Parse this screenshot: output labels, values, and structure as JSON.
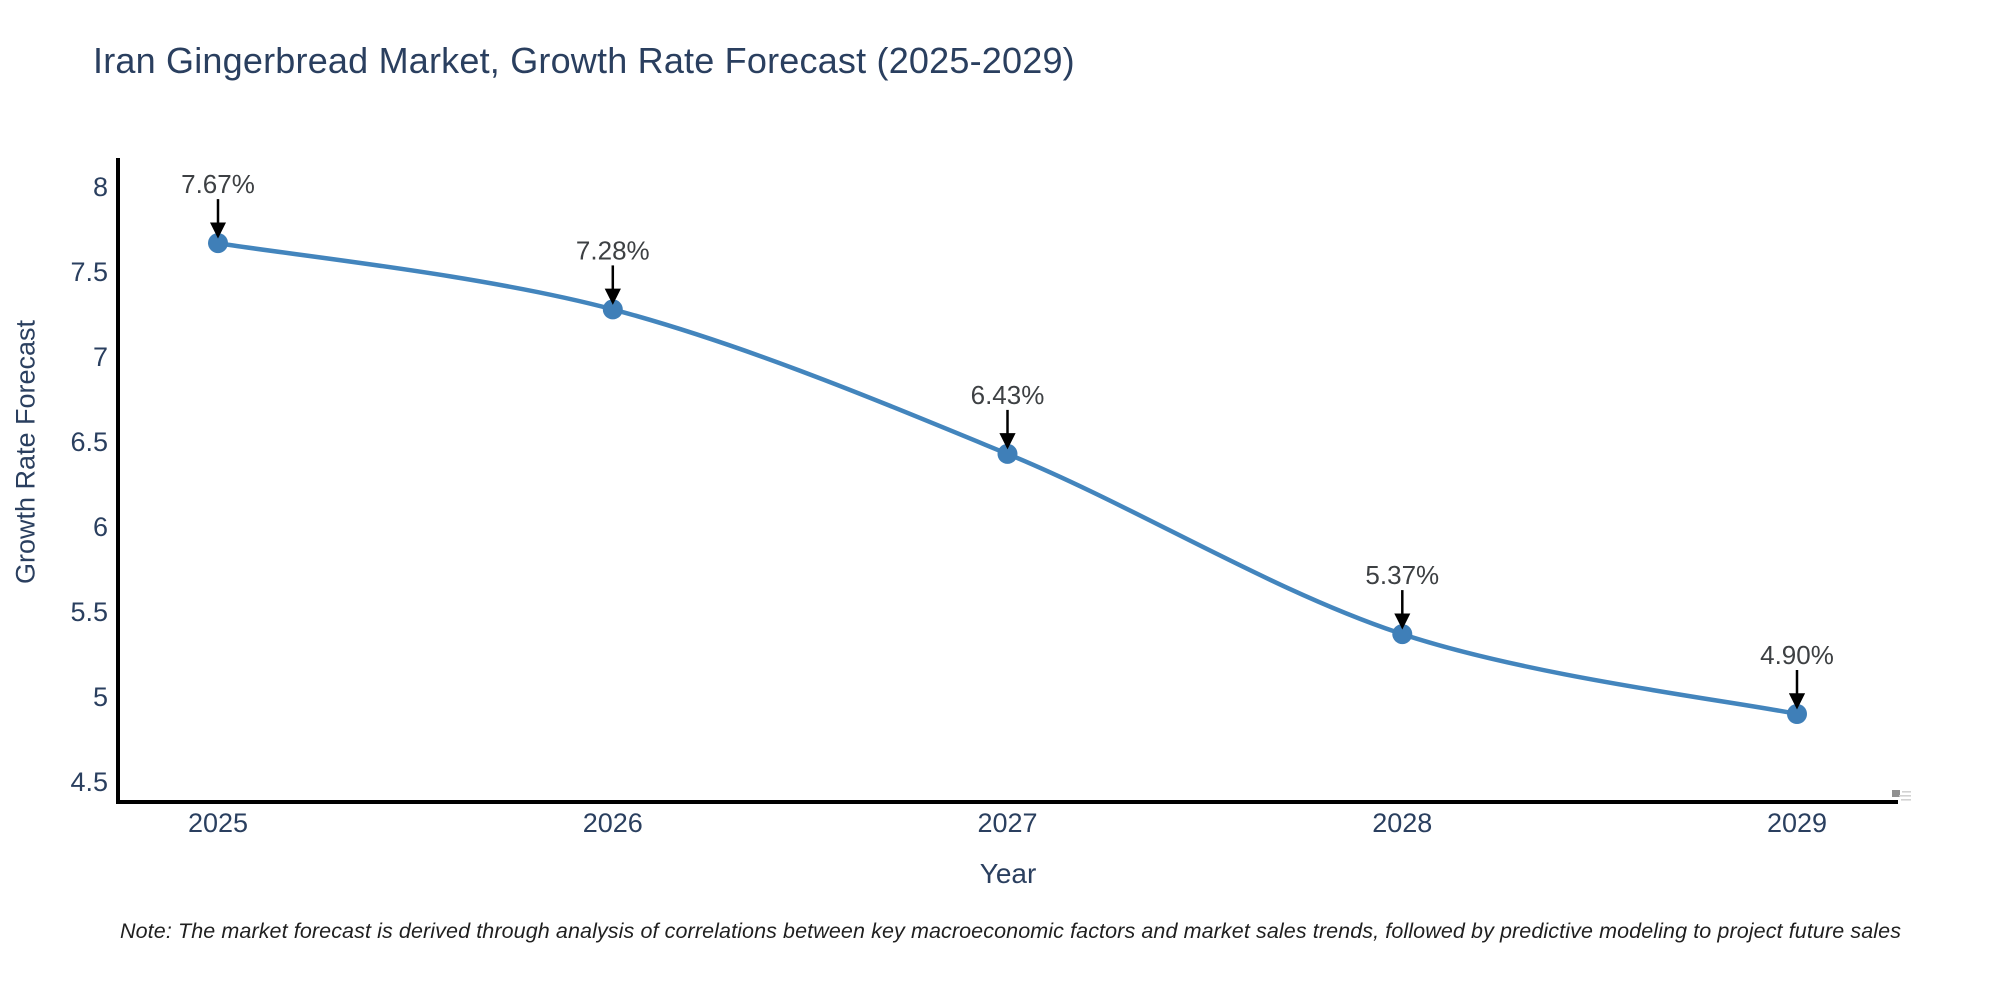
{
  "header": {
    "title": "Iran Gingerbread Market, Growth Rate Forecast (2025-2029)"
  },
  "footnote": {
    "text": "Note: The market forecast is derived through analysis of correlations between key macroeconomic factors and market sales trends, followed by predictive modeling to project future sales"
  },
  "chart_data": {
    "type": "line",
    "title": "Iran Gingerbread Market, Growth Rate Forecast (2025-2029)",
    "xlabel": "Year",
    "ylabel": "Growth Rate Forecast",
    "categories": [
      "2025",
      "2026",
      "2027",
      "2028",
      "2029"
    ],
    "values": [
      7.67,
      7.28,
      6.43,
      5.37,
      4.9
    ],
    "point_labels": [
      "7.67%",
      "7.28%",
      "6.43%",
      "5.37%",
      "4.90%"
    ],
    "ytick_labels": [
      "8",
      "7.5",
      "7",
      "6.5",
      "6",
      "5.5",
      "5",
      "4.5"
    ],
    "ytick_values": [
      8,
      7.5,
      7,
      6.5,
      6,
      5.5,
      5,
      4.5
    ],
    "ylim": [
      4.5,
      8
    ],
    "line_shape": "spline",
    "grid": false,
    "legend": "none",
    "annotations": "each point labeled with percent value and downward black arrow",
    "colors": {
      "line": "#4385bd",
      "marker": "#3f7fb8",
      "axis": "#000000",
      "title_text": "#2a3f5f",
      "tick_text": "#2a3f5f",
      "point_label_text": "#3d4043",
      "arrow": "#000000",
      "background": "#ffffff"
    }
  }
}
